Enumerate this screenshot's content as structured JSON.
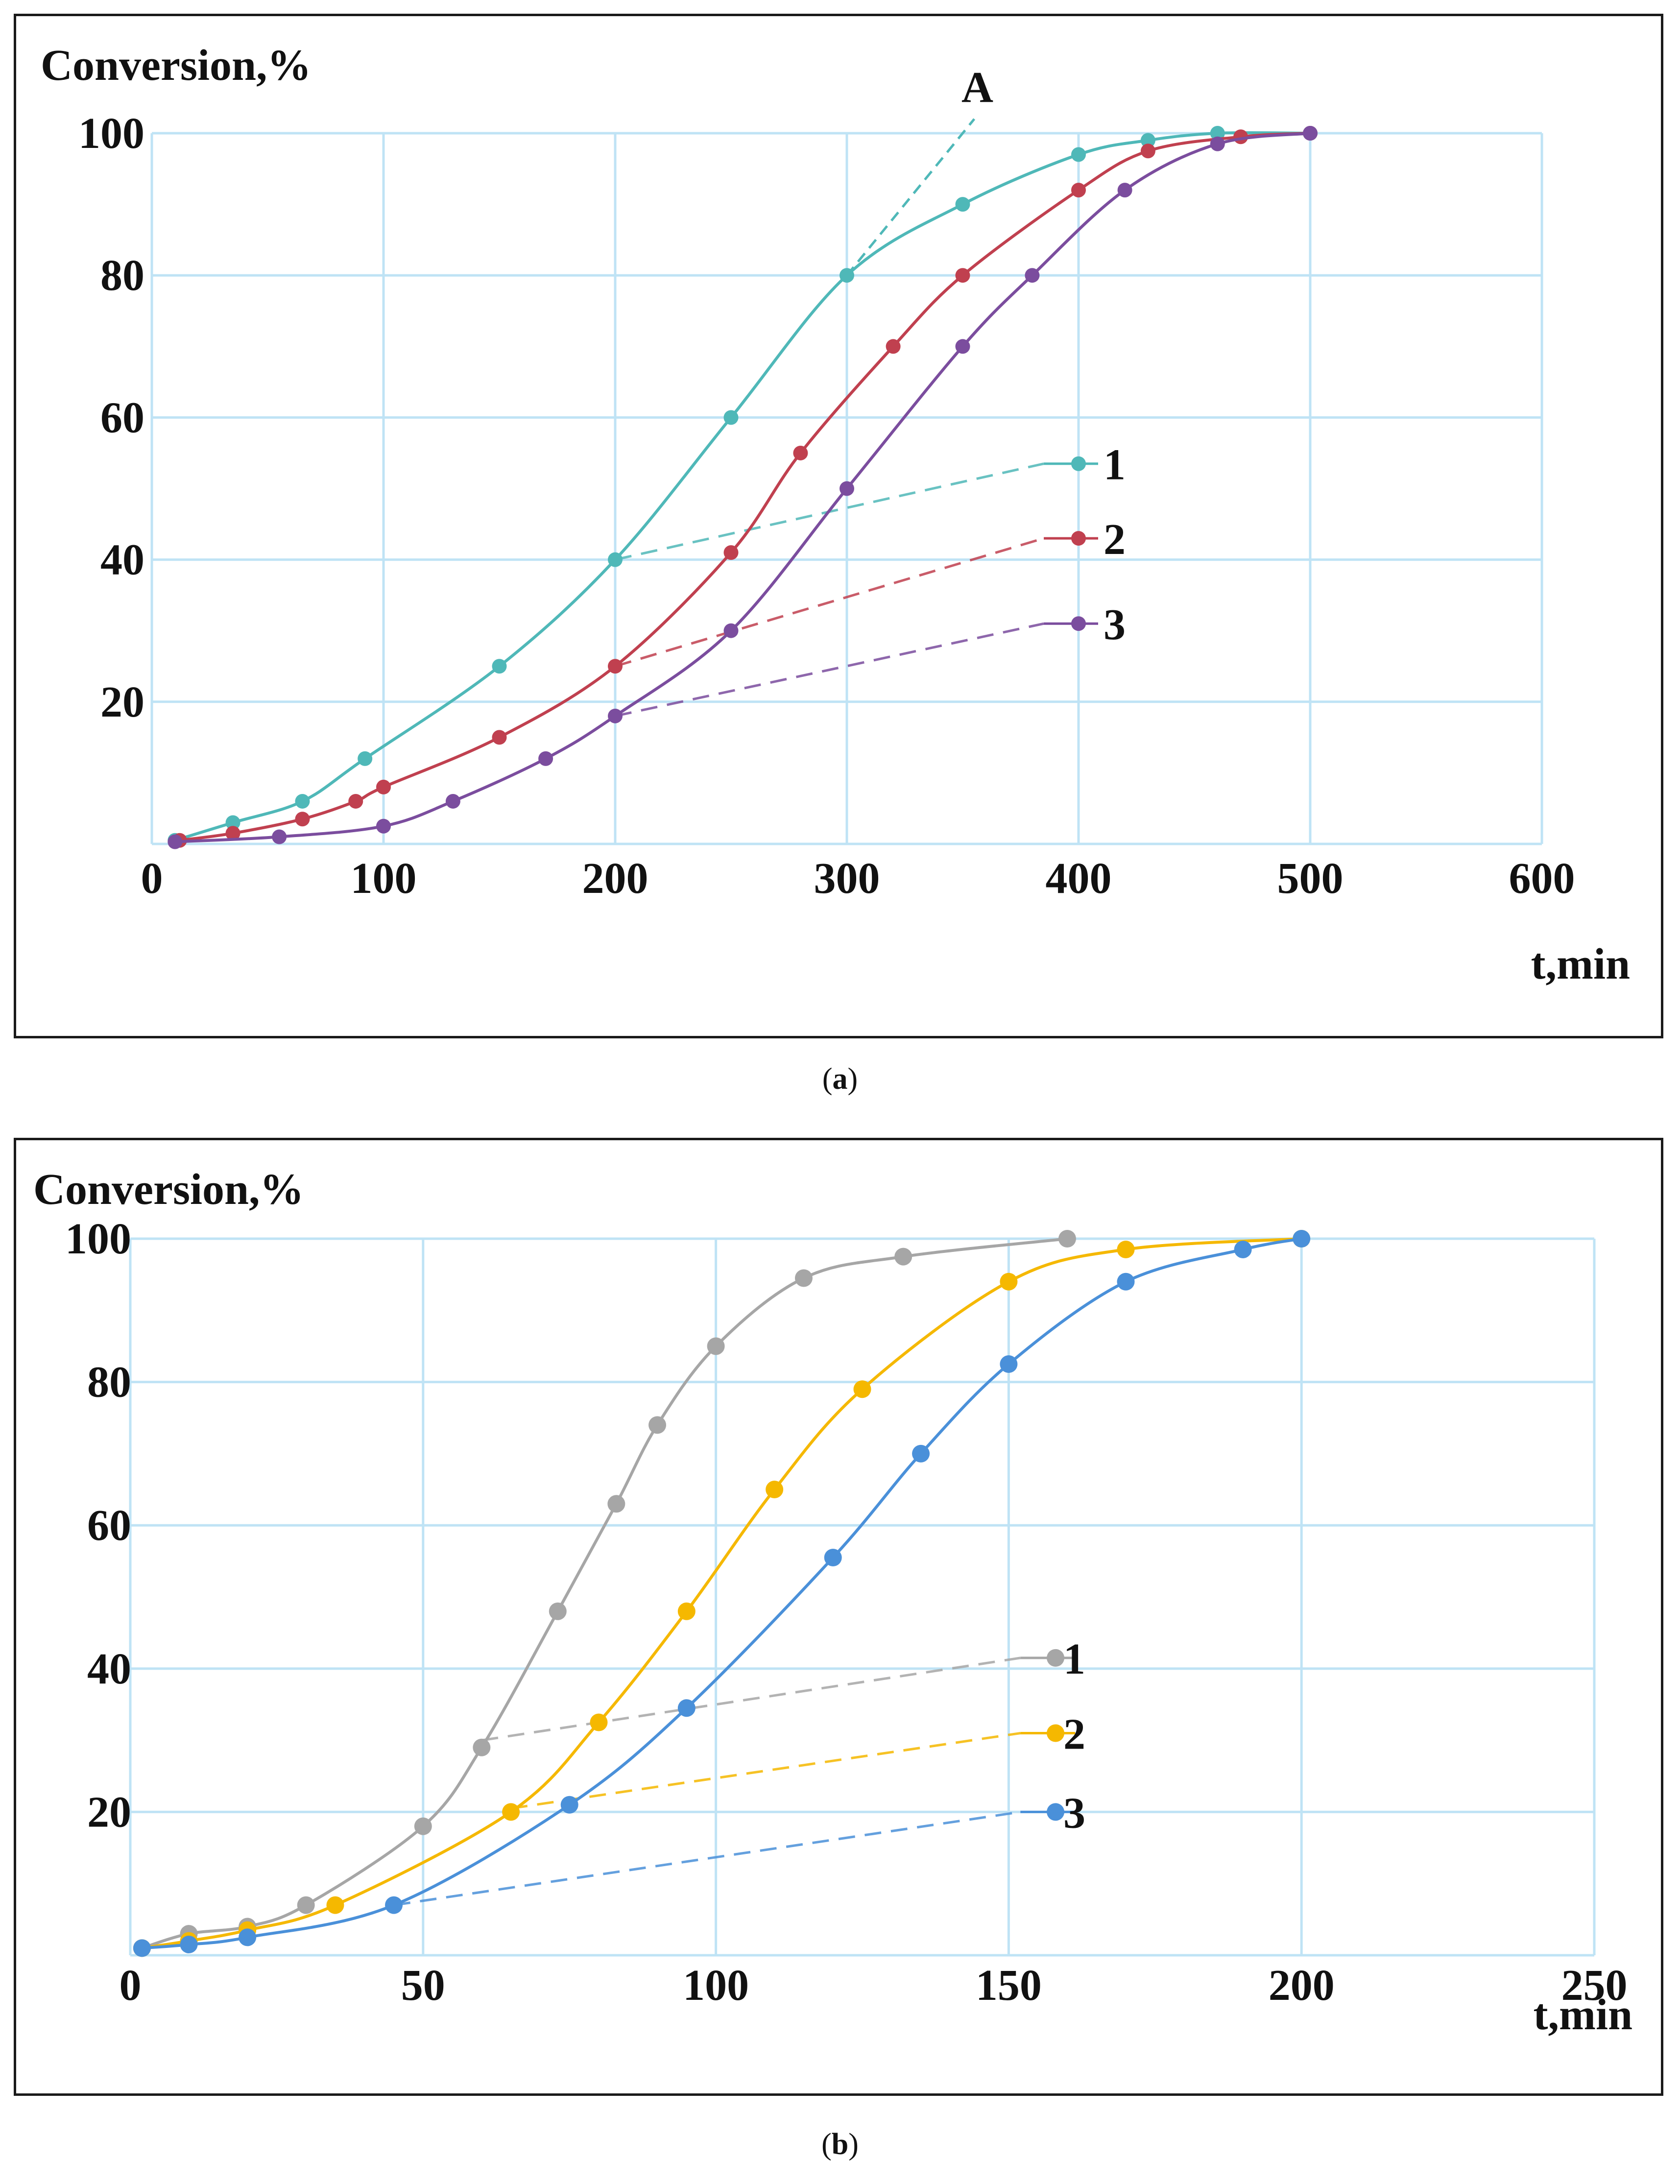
{
  "captions": {
    "a_open": "(",
    "a_letter": "a",
    "a_close": ")",
    "b_open": "(",
    "b_letter": "b",
    "b_close": ")"
  },
  "chart_data": [
    {
      "id": "a",
      "type": "line",
      "ylabel": "Conversion,%",
      "xlabel": "t,min",
      "xlim": [
        0,
        600
      ],
      "ylim": [
        0,
        100
      ],
      "xticks": [
        0,
        100,
        200,
        300,
        400,
        500,
        600
      ],
      "yticks": [
        20,
        40,
        60,
        80,
        100
      ],
      "grid": true,
      "annotation_label": "A",
      "annotation_line": {
        "from": [
          300,
          80
        ],
        "to": [
          355,
          102
        ],
        "color": "#4fb8b8"
      },
      "series": [
        {
          "name": "1",
          "color": "#4fb8b8",
          "label_point": [
            400,
            53.5
          ],
          "x": [
            10,
            35,
            65,
            92,
            150,
            200,
            250,
            300,
            350,
            400,
            430,
            460,
            500
          ],
          "y": [
            0.5,
            3,
            6,
            12,
            25,
            40,
            60,
            80,
            90,
            97,
            99,
            100,
            100
          ],
          "guide_from": [
            200,
            40
          ],
          "guide_to": [
            385,
            53.5
          ]
        },
        {
          "name": "2",
          "color": "#c0404f",
          "label_point": [
            400,
            43
          ],
          "x": [
            12,
            35,
            65,
            88,
            100,
            150,
            200,
            250,
            280,
            320,
            350,
            400,
            430,
            470,
            500
          ],
          "y": [
            0.5,
            1.5,
            3.5,
            6,
            8,
            15,
            25,
            41,
            55,
            70,
            80,
            92,
            97.5,
            99.5,
            100
          ],
          "guide_from": [
            200,
            25
          ],
          "guide_to": [
            385,
            43
          ]
        },
        {
          "name": "3",
          "color": "#7b4d9e",
          "label_point": [
            400,
            31
          ],
          "x": [
            10,
            55,
            100,
            130,
            170,
            200,
            250,
            300,
            350,
            380,
            420,
            460,
            500
          ],
          "y": [
            0.3,
            1,
            2.5,
            6,
            12,
            18,
            30,
            50,
            70,
            80,
            92,
            98.5,
            100
          ],
          "guide_from": [
            200,
            18
          ],
          "guide_to": [
            385,
            31
          ]
        }
      ]
    },
    {
      "id": "b",
      "type": "line",
      "ylabel": "Conversion,%",
      "xlabel": "t,min",
      "xlim": [
        0,
        250
      ],
      "ylim": [
        0,
        100
      ],
      "xticks": [
        0,
        50,
        100,
        150,
        200,
        250
      ],
      "yticks": [
        20,
        40,
        60,
        80,
        100
      ],
      "grid": true,
      "series": [
        {
          "name": "1",
          "color": "#a6a6a6",
          "label_point": [
            158,
            41.5
          ],
          "x": [
            2,
            10,
            20,
            30,
            50,
            60,
            73,
            83,
            90,
            100,
            115,
            132,
            160
          ],
          "y": [
            1,
            3,
            4,
            7,
            18,
            29,
            48,
            63,
            74,
            85,
            94.5,
            97.5,
            100
          ],
          "guide_from": [
            60,
            30
          ],
          "guide_to": [
            152,
            41.5
          ]
        },
        {
          "name": "2",
          "color": "#f5b800",
          "label_point": [
            158,
            31
          ],
          "x": [
            2,
            10,
            20,
            35,
            65,
            80,
            95,
            110,
            125,
            150,
            170,
            200
          ],
          "y": [
            1,
            2,
            3.5,
            7,
            20,
            32.5,
            48,
            65,
            79,
            94,
            98.5,
            100
          ],
          "guide_from": [
            65,
            20.5
          ],
          "guide_to": [
            152,
            31
          ]
        },
        {
          "name": "3",
          "color": "#4a90d9",
          "label_point": [
            158,
            20
          ],
          "x": [
            2,
            10,
            20,
            45,
            75,
            95,
            120,
            135,
            150,
            170,
            190,
            200
          ],
          "y": [
            1,
            1.5,
            2.5,
            7,
            21,
            34.5,
            55.5,
            70,
            82.5,
            94,
            98.5,
            100
          ],
          "guide_from": [
            45,
            7
          ],
          "guide_to": [
            152,
            20
          ]
        }
      ]
    }
  ]
}
